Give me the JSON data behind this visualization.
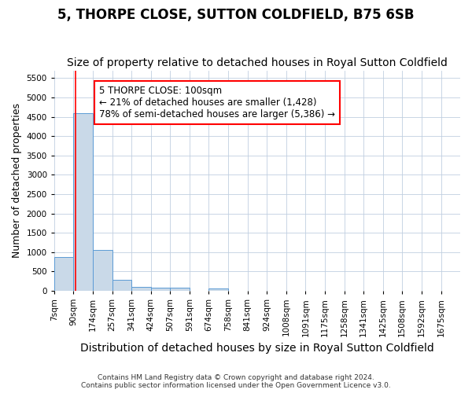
{
  "title": "5, THORPE CLOSE, SUTTON COLDFIELD, B75 6SB",
  "subtitle": "Size of property relative to detached houses in Royal Sutton Coldfield",
  "xlabel": "Distribution of detached houses by size in Royal Sutton Coldfield",
  "ylabel": "Number of detached properties",
  "footer_line1": "Contains HM Land Registry data © Crown copyright and database right 2024.",
  "footer_line2": "Contains public sector information licensed under the Open Government Licence v3.0.",
  "bins": [
    "7sqm",
    "90sqm",
    "174sqm",
    "257sqm",
    "341sqm",
    "424sqm",
    "507sqm",
    "591sqm",
    "674sqm",
    "758sqm",
    "841sqm",
    "924sqm",
    "1008sqm",
    "1091sqm",
    "1175sqm",
    "1258sqm",
    "1341sqm",
    "1425sqm",
    "1508sqm",
    "1592sqm",
    "1675sqm"
  ],
  "bin_edges": [
    7,
    90,
    174,
    257,
    341,
    424,
    507,
    591,
    674,
    758,
    841,
    924,
    1008,
    1091,
    1175,
    1258,
    1341,
    1425,
    1508,
    1592,
    1675
  ],
  "bar_heights": [
    870,
    4600,
    1050,
    290,
    100,
    80,
    75,
    0,
    65,
    0,
    0,
    0,
    0,
    0,
    0,
    0,
    0,
    0,
    0,
    0
  ],
  "bar_color": "#c9d9e8",
  "bar_edge_color": "#5b9bd5",
  "ylim": [
    0,
    5700
  ],
  "yticks": [
    0,
    500,
    1000,
    1500,
    2000,
    2500,
    3000,
    3500,
    4000,
    4500,
    5000,
    5500
  ],
  "property_size": 100,
  "annotation_text": "5 THORPE CLOSE: 100sqm\n← 21% of detached houses are smaller (1,428)\n78% of semi-detached houses are larger (5,386) →",
  "annotation_box_color": "#ff0000",
  "vline_color": "#ff0000",
  "title_fontsize": 12,
  "subtitle_fontsize": 10,
  "xlabel_fontsize": 10,
  "ylabel_fontsize": 9,
  "tick_fontsize": 7.5,
  "annotation_fontsize": 8.5,
  "background_color": "#ffffff",
  "grid_color": "#c0cfe0"
}
